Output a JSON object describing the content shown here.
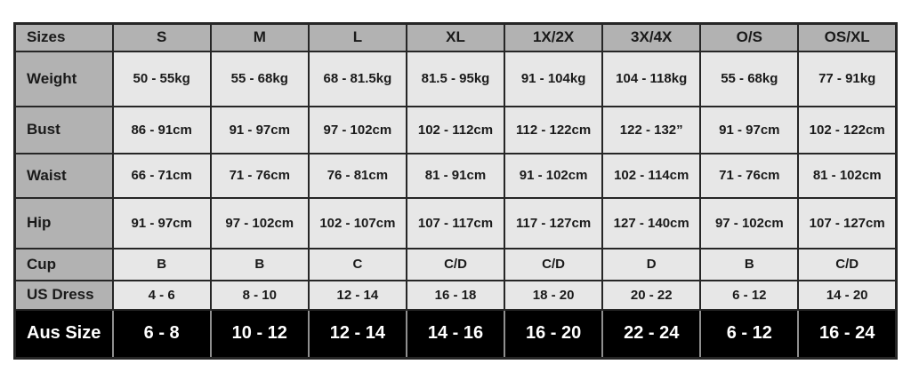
{
  "chart_data": {
    "type": "table",
    "corner_label": "Sizes",
    "columns": [
      "S",
      "M",
      "L",
      "XL",
      "1X/2X",
      "3X/4X",
      "O/S",
      "OS/XL"
    ],
    "rows": [
      {
        "label": "Weight",
        "values": [
          "50 - 55kg",
          "55 - 68kg",
          "68 - 81.5kg",
          "81.5 - 95kg",
          "91 - 104kg",
          "104 - 118kg",
          "55 - 68kg",
          "77 - 91kg"
        ]
      },
      {
        "label": "Bust",
        "values": [
          "86 - 91cm",
          "91 - 97cm",
          "97 - 102cm",
          "102 - 112cm",
          "112 - 122cm",
          "122 - 132”",
          "91 - 97cm",
          "102 - 122cm"
        ]
      },
      {
        "label": "Waist",
        "values": [
          "66 - 71cm",
          "71 - 76cm",
          "76 - 81cm",
          "81 - 91cm",
          "91 - 102cm",
          "102 - 114cm",
          "71 - 76cm",
          "81 - 102cm"
        ]
      },
      {
        "label": "Hip",
        "values": [
          "91 - 97cm",
          "97 - 102cm",
          "102 - 107cm",
          "107 - 117cm",
          "117 - 127cm",
          "127 - 140cm",
          "97 - 102cm",
          "107 - 127cm"
        ]
      },
      {
        "label": "Cup",
        "values": [
          "B",
          "B",
          "C",
          "C/D",
          "C/D",
          "D",
          "B",
          "C/D"
        ]
      },
      {
        "label": "US Dress",
        "values": [
          "4 - 6",
          "8 - 10",
          "12 - 14",
          "16 - 18",
          "18 - 20",
          "20 - 22",
          "6 - 12",
          "14 - 20"
        ]
      },
      {
        "label": "Aus Size",
        "values": [
          "6 - 8",
          "10 - 12",
          "12 - 14",
          "14 - 16",
          "16 - 20",
          "22 - 24",
          "6 - 12",
          "16 - 24"
        ],
        "highlight": true
      }
    ]
  },
  "colors": {
    "header_bg": "#b2b2b2",
    "label_col_bg": "#b2b2b2",
    "cell_bg": "#e7e7e7",
    "border": "#262626",
    "aus_row_bg": "#000000",
    "aus_row_text": "#ffffff",
    "text": "#1a1a1a",
    "page_bg": "#ffffff"
  }
}
